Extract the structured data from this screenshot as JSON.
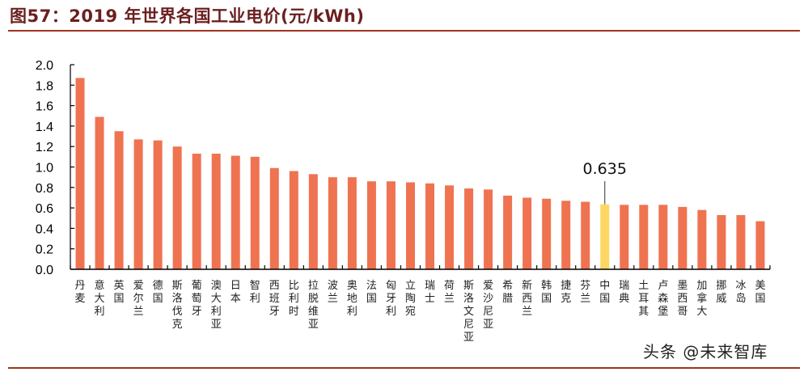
{
  "header": {
    "title": "图57：2019 年世界各国工业电价(元/kWh)"
  },
  "watermark": "头条 @未来智库",
  "colors": {
    "bar": "#ef7350",
    "highlight_bar": "#fdd663",
    "title": "#6b1f1f",
    "rule": "#a0321e"
  },
  "chart_data": {
    "type": "bar",
    "title": "2019 年世界各国工业电价(元/kWh)",
    "xlabel": "",
    "ylabel": "",
    "ylim": [
      0,
      2.0
    ],
    "yticks": [
      0.0,
      0.2,
      0.4,
      0.6,
      0.8,
      1.0,
      1.2,
      1.4,
      1.6,
      1.8,
      2.0
    ],
    "ytick_labels": [
      "0.0",
      "0.2",
      "0.4",
      "0.6",
      "0.8",
      "1.0",
      "1.2",
      "1.4",
      "1.6",
      "1.8",
      "2.0"
    ],
    "grid": false,
    "legend": null,
    "categories": [
      "丹麦",
      "意大利",
      "英国",
      "爱尔兰",
      "德国",
      "斯洛伐克",
      "葡萄牙",
      "澳大利亚",
      "日本",
      "智利",
      "西班牙",
      "比利时",
      "拉脱维亚",
      "波兰",
      "奥地利",
      "法国",
      "匈牙利",
      "立陶宛",
      "瑞士",
      "荷兰",
      "斯洛文尼亚",
      "爱沙尼亚",
      "希腊",
      "新西兰",
      "韩国",
      "捷克",
      "芬兰",
      "中国",
      "瑞典",
      "土耳其",
      "卢森堡",
      "墨西哥",
      "加拿大",
      "挪威",
      "冰岛",
      "美国"
    ],
    "values": [
      1.87,
      1.49,
      1.35,
      1.27,
      1.26,
      1.2,
      1.13,
      1.13,
      1.11,
      1.1,
      0.99,
      0.96,
      0.93,
      0.9,
      0.9,
      0.86,
      0.86,
      0.85,
      0.84,
      0.82,
      0.79,
      0.78,
      0.72,
      0.7,
      0.69,
      0.67,
      0.66,
      0.635,
      0.63,
      0.63,
      0.63,
      0.61,
      0.58,
      0.53,
      0.53,
      0.47
    ],
    "highlight": {
      "category": "中国",
      "index": 27,
      "value": 0.635
    },
    "annotations": [
      {
        "text": "0.635",
        "target": "中国"
      }
    ]
  }
}
